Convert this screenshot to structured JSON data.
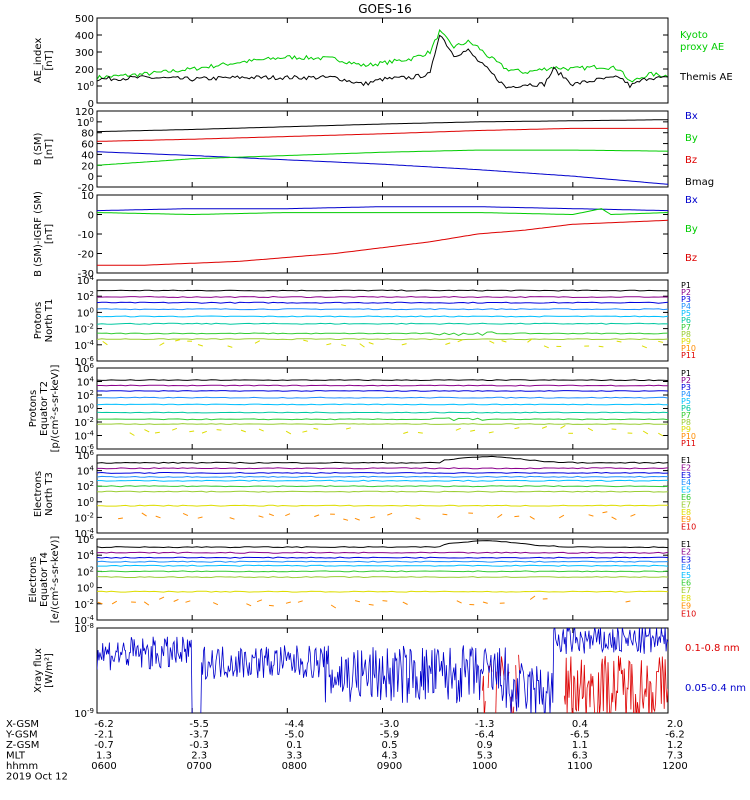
{
  "title": "GOES-16",
  "colors": {
    "black": "#000000",
    "blue": "#0000cc",
    "green": "#00cc00",
    "red": "#dd0000",
    "P1": "#000000",
    "P2": "#8b008b",
    "P3": "#0000dd",
    "P4": "#1e90ff",
    "P5": "#00bfff",
    "P6": "#00c8a0",
    "P7": "#33cc33",
    "P8": "#9acd32",
    "P9": "#dddd00",
    "P10": "#ff8c00",
    "P11": "#dd0000"
  },
  "chart_data": [
    {
      "type": "line",
      "name": "ae",
      "ylabel": "AE_index\n[nT]",
      "ylim": [
        0,
        500
      ],
      "yticks": [
        "0",
        "100",
        "200",
        "300",
        "400",
        "500"
      ],
      "series": [
        {
          "name": "Kyoto proxy AE",
          "color": "#00cc00",
          "label_lines": [
            "Kyoto",
            "proxy AE"
          ],
          "x": [
            6.0,
            6.5,
            7.0,
            7.5,
            8.0,
            8.5,
            8.8,
            9.0,
            9.3,
            9.5,
            9.6,
            9.75,
            9.9,
            10.0,
            10.1,
            10.3,
            10.5,
            10.7,
            10.8,
            11.0,
            11.3,
            11.5,
            11.6,
            11.8,
            12.0
          ],
          "y": [
            150,
            170,
            200,
            240,
            270,
            260,
            220,
            235,
            260,
            300,
            420,
            330,
            360,
            330,
            280,
            200,
            180,
            200,
            210,
            200,
            215,
            200,
            120,
            170,
            160
          ]
        },
        {
          "name": "Themis AE",
          "color": "#000000",
          "label_lines": [
            "Themis AE"
          ],
          "x": [
            6.0,
            6.5,
            7.0,
            7.5,
            8.0,
            8.5,
            8.8,
            9.0,
            9.3,
            9.5,
            9.6,
            9.75,
            9.9,
            10.0,
            10.1,
            10.3,
            10.5,
            10.7,
            10.8,
            11.0,
            11.3,
            11.5,
            11.6,
            11.8,
            12.0
          ],
          "y": [
            140,
            150,
            140,
            150,
            150,
            150,
            110,
            140,
            150,
            170,
            410,
            280,
            310,
            250,
            200,
            90,
            110,
            110,
            200,
            110,
            140,
            150,
            100,
            150,
            145
          ]
        }
      ]
    },
    {
      "type": "line",
      "name": "bsm",
      "ylabel": "B (SM)\n[nT]",
      "ylim": [
        -20,
        120
      ],
      "yticks": [
        "-20",
        "0",
        "20",
        "40",
        "60",
        "80",
        "100",
        "120"
      ],
      "series": [
        {
          "name": "Bx",
          "color": "#0000cc",
          "label_lines": [
            "Bx"
          ],
          "x": [
            6,
            7,
            8,
            9,
            10,
            11,
            12
          ],
          "y": [
            45,
            38,
            30,
            22,
            12,
            0,
            -15
          ]
        },
        {
          "name": "By",
          "color": "#00cc00",
          "label_lines": [
            "By"
          ],
          "x": [
            6,
            7,
            8,
            9,
            10,
            11,
            12
          ],
          "y": [
            20,
            32,
            38,
            44,
            48,
            48,
            46
          ]
        },
        {
          "name": "Bz",
          "color": "#dd0000",
          "label_lines": [
            "Bz"
          ],
          "x": [
            6,
            7,
            8,
            9,
            10,
            11,
            12
          ],
          "y": [
            64,
            68,
            73,
            78,
            84,
            88,
            88
          ]
        },
        {
          "name": "Bmag",
          "color": "#000000",
          "label_lines": [
            "Bmag"
          ],
          "x": [
            6,
            7,
            8,
            9,
            10,
            11,
            12
          ],
          "y": [
            82,
            86,
            91,
            96,
            100,
            102,
            104
          ]
        }
      ]
    },
    {
      "type": "line",
      "name": "bsmigrf",
      "ylabel": "B (SM)-IGRF (SM)\n[nT]",
      "ylim": [
        -30,
        10
      ],
      "yticks": [
        "-30",
        "-20",
        "-10",
        "0",
        "10"
      ],
      "series": [
        {
          "name": "Bx",
          "color": "#0000cc",
          "label_lines": [
            "Bx"
          ],
          "x": [
            6,
            7,
            8,
            9,
            10,
            11,
            12
          ],
          "y": [
            2,
            3,
            3,
            4,
            4,
            3,
            2
          ]
        },
        {
          "name": "By",
          "color": "#00cc00",
          "label_lines": [
            "By"
          ],
          "x": [
            6,
            7,
            8,
            9,
            10,
            11,
            11.3,
            11.4,
            12
          ],
          "y": [
            1,
            0,
            1,
            1,
            1,
            0,
            3,
            0,
            1
          ]
        },
        {
          "name": "Bz",
          "color": "#dd0000",
          "label_lines": [
            "Bz"
          ],
          "x": [
            6,
            6.5,
            7,
            7.5,
            8,
            8.5,
            9,
            9.5,
            10,
            10.5,
            11,
            11.5,
            12
          ],
          "y": [
            -26,
            -26,
            -25,
            -24,
            -22,
            -20,
            -17,
            -14,
            -10,
            -8,
            -5,
            -4,
            -3
          ]
        }
      ]
    },
    {
      "type": "line",
      "name": "pn",
      "ylabel": "Protons\nNorth T1",
      "log": true,
      "ylim": [
        -6,
        4
      ],
      "yticks": [
        "10-6",
        "10-4",
        "10-2",
        "100",
        "102",
        "104"
      ],
      "series": [
        {
          "name": "P1",
          "y": 2.7
        },
        {
          "name": "P2",
          "y": 1.9
        },
        {
          "name": "P3",
          "y": 1.2
        },
        {
          "name": "P4",
          "y": 0.4
        },
        {
          "name": "P5",
          "y": -0.5
        },
        {
          "name": "P6",
          "y": -1.4
        },
        {
          "name": "P7",
          "y": -2.6
        },
        {
          "name": "P8",
          "y": -3.3
        },
        {
          "name": "P9",
          "y": -3.8
        },
        {
          "name": "P10",
          "y": -99
        },
        {
          "name": "P11",
          "y": -99
        }
      ]
    },
    {
      "type": "line",
      "name": "pe",
      "ylabel": "Protons\nEquator T2\n[p/(cm²-s-sr-keV)]",
      "log": true,
      "ylim": [
        -6,
        6
      ],
      "yticks": [
        "10-6",
        "10-4",
        "10-2",
        "100",
        "102",
        "104",
        "106"
      ],
      "series": [
        {
          "name": "P1",
          "y": 4.2
        },
        {
          "name": "P2",
          "y": 3.4
        },
        {
          "name": "P3",
          "y": 2.6
        },
        {
          "name": "P4",
          "y": 1.6
        },
        {
          "name": "P5",
          "y": 0.6
        },
        {
          "name": "P6",
          "y": -0.6
        },
        {
          "name": "P7",
          "y": -1.6
        },
        {
          "name": "P8",
          "y": -2.3
        },
        {
          "name": "P9",
          "y": -3.3
        },
        {
          "name": "P10",
          "y": -99
        },
        {
          "name": "P11",
          "y": -99
        }
      ]
    },
    {
      "type": "line",
      "name": "en",
      "ylabel": "Electrons\nNorth T3",
      "log": true,
      "ylim": [
        -4,
        6
      ],
      "yticks": [
        "10-4",
        "10-2",
        "100",
        "102",
        "104",
        "106"
      ],
      "series": [
        {
          "name": "E1",
          "y": 5.0
        },
        {
          "name": "E2",
          "y": 4.3
        },
        {
          "name": "E3",
          "y": 3.7
        },
        {
          "name": "E4",
          "y": 3.2
        },
        {
          "name": "E5",
          "y": 2.7
        },
        {
          "name": "E6",
          "y": 2.0
        },
        {
          "name": "E7",
          "y": 1.3
        },
        {
          "name": "E8",
          "y": -0.5
        },
        {
          "name": "E9",
          "y": -1.8
        },
        {
          "name": "E10",
          "y": -99
        }
      ]
    },
    {
      "type": "line",
      "name": "ee",
      "ylabel": "Electrons\nEquator T4\n[e/(cm²-s-sr-keV)]",
      "log": true,
      "ylim": [
        -4,
        6
      ],
      "yticks": [
        "10-4",
        "10-2",
        "100",
        "102",
        "104",
        "106"
      ],
      "series": [
        {
          "name": "E1",
          "y": 5.0
        },
        {
          "name": "E2",
          "y": 4.3
        },
        {
          "name": "E3",
          "y": 3.7
        },
        {
          "name": "E4",
          "y": 3.2
        },
        {
          "name": "E5",
          "y": 2.7
        },
        {
          "name": "E6",
          "y": 2.0
        },
        {
          "name": "E7",
          "y": 1.3
        },
        {
          "name": "E8",
          "y": -0.5
        },
        {
          "name": "E9",
          "y": -1.8
        },
        {
          "name": "E10",
          "y": -99
        }
      ]
    },
    {
      "type": "line",
      "name": "xray",
      "ylabel": "Xray flux\n[W/m²]",
      "log": true,
      "ylim": [
        -9,
        -8
      ],
      "yticks": [
        "10-9",
        "10-8"
      ],
      "series": [
        {
          "name": "0.1-0.8 nm",
          "color": "#dd0000",
          "label_lines": [
            "0.1-0.8 nm"
          ]
        },
        {
          "name": "0.05-0.4 nm",
          "color": "#0000cc",
          "label_lines": [
            "0.05-0.4 nm"
          ]
        }
      ]
    }
  ],
  "xaxis": {
    "ticks": [
      "0600",
      "0700",
      "0800",
      "0900",
      "1000",
      "1100",
      "1200"
    ],
    "rows": [
      {
        "label": "X-GSM",
        "values": [
          "-6.2",
          "-5.5",
          "-4.4",
          "-3.0",
          "-1.3",
          "0.4",
          "2.0"
        ]
      },
      {
        "label": "Y-GSM",
        "values": [
          "-2.1",
          "-3.7",
          "-5.0",
          "-5.9",
          "-6.4",
          "-6.5",
          "-6.2"
        ]
      },
      {
        "label": "Z-GSM",
        "values": [
          "-0.7",
          "-0.3",
          "0.1",
          "0.5",
          "0.9",
          "1.1",
          "1.2"
        ]
      },
      {
        "label": "MLT",
        "values": [
          "1.3",
          "2.3",
          "3.3",
          "4.3",
          "5.3",
          "6.3",
          "7.3"
        ]
      },
      {
        "label": "hhmm",
        "values": [
          "0600",
          "0700",
          "0800",
          "0900",
          "1000",
          "1100",
          "1200"
        ]
      }
    ],
    "date": "2019 Oct 12"
  }
}
